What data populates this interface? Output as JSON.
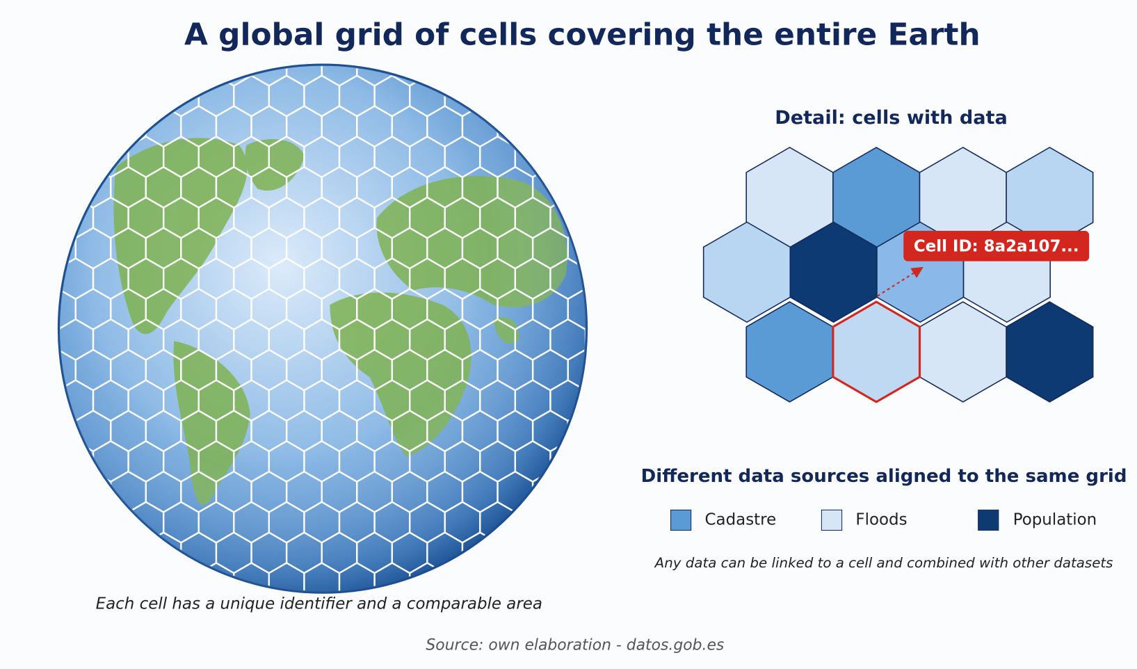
{
  "title": "A global grid of cells covering the entire Earth",
  "globe": {
    "caption": "Each cell has a unique identifier and a comparable area"
  },
  "detail": {
    "title": "Detail: cells with data",
    "cell_label": "Cell ID: 8a2a107..."
  },
  "legend": {
    "title": "Different data sources aligned to the same grid",
    "items": [
      "Cadastre",
      "Floods",
      "Population"
    ],
    "note": "Any data can be linked to a cell and combined with other datasets"
  },
  "source": "Source: own elaboration - datos.gob.es"
}
